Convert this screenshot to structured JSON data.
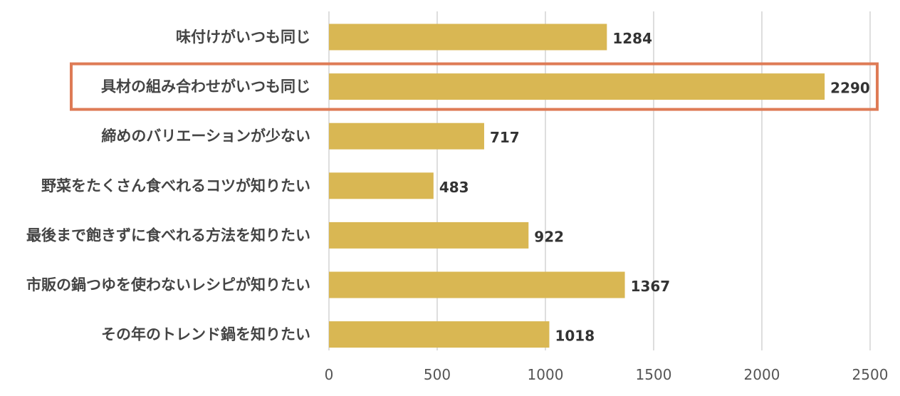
{
  "chart_data": {
    "type": "bar",
    "orientation": "horizontal",
    "categories": [
      "味付けがいつも同じ",
      "具材の組み合わせがいつも同じ",
      "締めのバリエーションが少ない",
      "野菜をたくさん食べれるコツが知りたい",
      "最後まで飽きずに食べれる方法を知りたい",
      "市販の鍋つゆを使わないレシピが知りたい",
      "その年のトレンド鍋を知りたい"
    ],
    "values": [
      1284,
      2290,
      717,
      483,
      922,
      1367,
      1018
    ],
    "value_labels": [
      "1284",
      "2290",
      "717",
      "483",
      "922",
      "1367",
      "1018"
    ],
    "xlim": [
      0,
      2500
    ],
    "x_ticks": [
      "0",
      "500",
      "1000",
      "1500",
      "2000",
      "2500"
    ],
    "grid": true,
    "highlighted_category": 1,
    "colors": {
      "bar": "#d9b753",
      "highlight": "#de7b56",
      "grid": "#d4d4d4"
    }
  }
}
